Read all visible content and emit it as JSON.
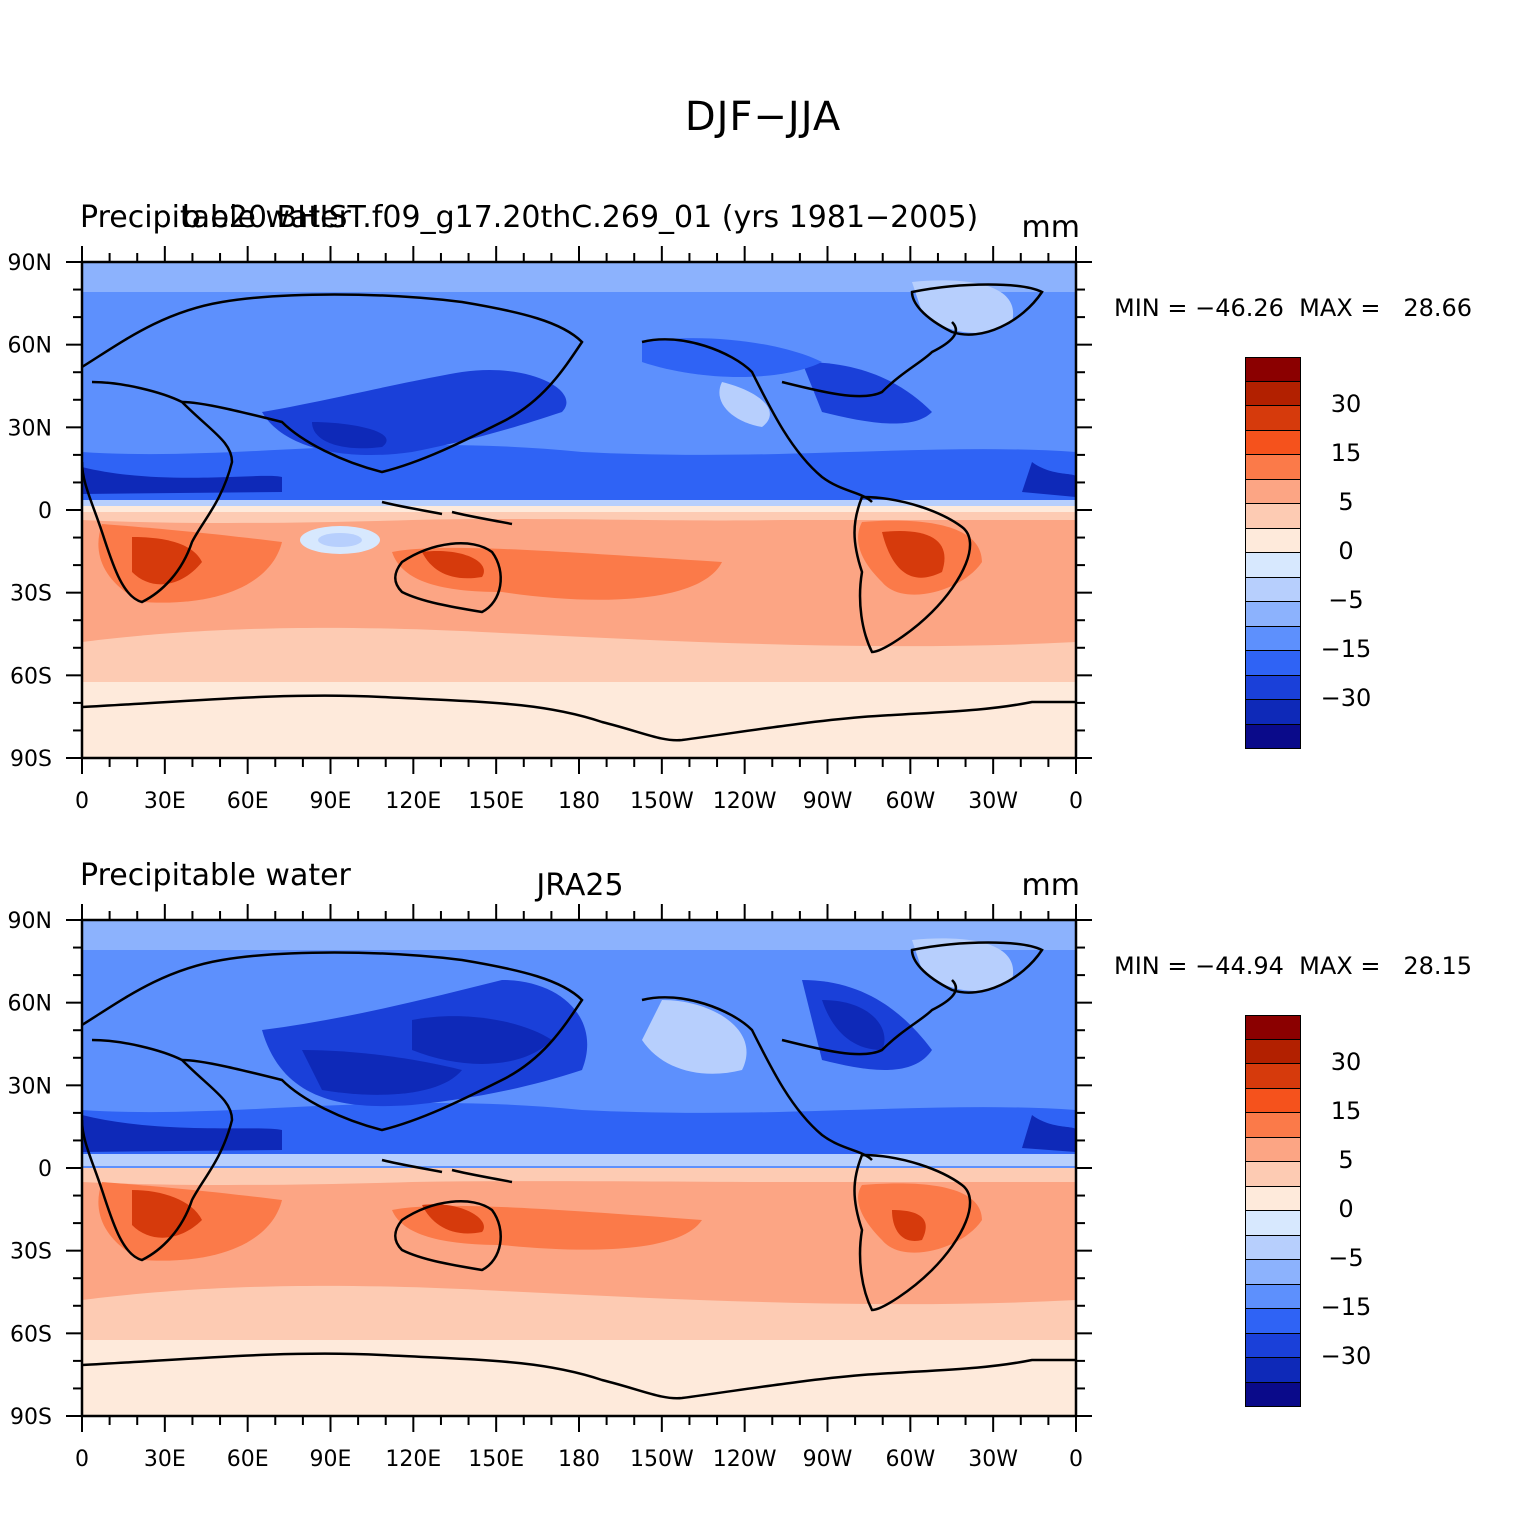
{
  "figure": {
    "title": "DJF−JJA"
  },
  "panels": [
    {
      "left_title": "Precipitable water",
      "center_title": "b.e20.BHIST.f09_g17.20thC.269_01 (yrs 1981−2005)",
      "units": "mm",
      "minmax": "MIN = −46.26  MAX =   28.66"
    },
    {
      "left_title": "Precipitable water",
      "center_title": "JRA25",
      "units": "mm",
      "minmax": "MIN = −44.94  MAX =   28.15"
    }
  ],
  "axes": {
    "lon_labels": [
      "0",
      "30E",
      "60E",
      "90E",
      "120E",
      "150E",
      "180",
      "150W",
      "120W",
      "90W",
      "60W",
      "30W",
      "0"
    ],
    "lat_labels": [
      "90N",
      "60N",
      "30N",
      "0",
      "30S",
      "60S",
      "90S"
    ]
  },
  "colorbar": {
    "colors": [
      "#8b0000",
      "#b22000",
      "#d63a0c",
      "#f5521c",
      "#fb7a49",
      "#fca584",
      "#fdcbb3",
      "#feeadb",
      "#d7e8fe",
      "#b7cffd",
      "#8cb2fd",
      "#5d90fd",
      "#2f63f5",
      "#1a40d9",
      "#0e29b8",
      "#0a0a8a"
    ],
    "labels": [
      "30",
      "15",
      "5",
      "0",
      "−5",
      "−15",
      "−30"
    ]
  },
  "chart_data": {
    "type": "heatmap",
    "title": "DJF−JJA",
    "variable": "Precipitable water",
    "units": "mm",
    "x_axis": {
      "range": [
        0,
        360
      ],
      "ticks": [
        "0",
        "30E",
        "60E",
        "90E",
        "120E",
        "150E",
        "180",
        "150W",
        "120W",
        "90W",
        "60W",
        "30W",
        "0"
      ]
    },
    "y_axis": {
      "range": [
        -90,
        90
      ],
      "ticks": [
        "90N",
        "60N",
        "30N",
        "0",
        "30S",
        "60S",
        "90S"
      ]
    },
    "contour_levels": [
      -40,
      -30,
      -20,
      -15,
      -10,
      -5,
      -2,
      0,
      2,
      5,
      10,
      15,
      20,
      30,
      40
    ],
    "panels": [
      {
        "name": "b.e20.BHIST.f09_g17.20thC.269_01 (yrs 1981−2005)",
        "min": -46.26,
        "max": 28.66
      },
      {
        "name": "JRA25",
        "min": -44.94,
        "max": 28.15
      }
    ]
  }
}
